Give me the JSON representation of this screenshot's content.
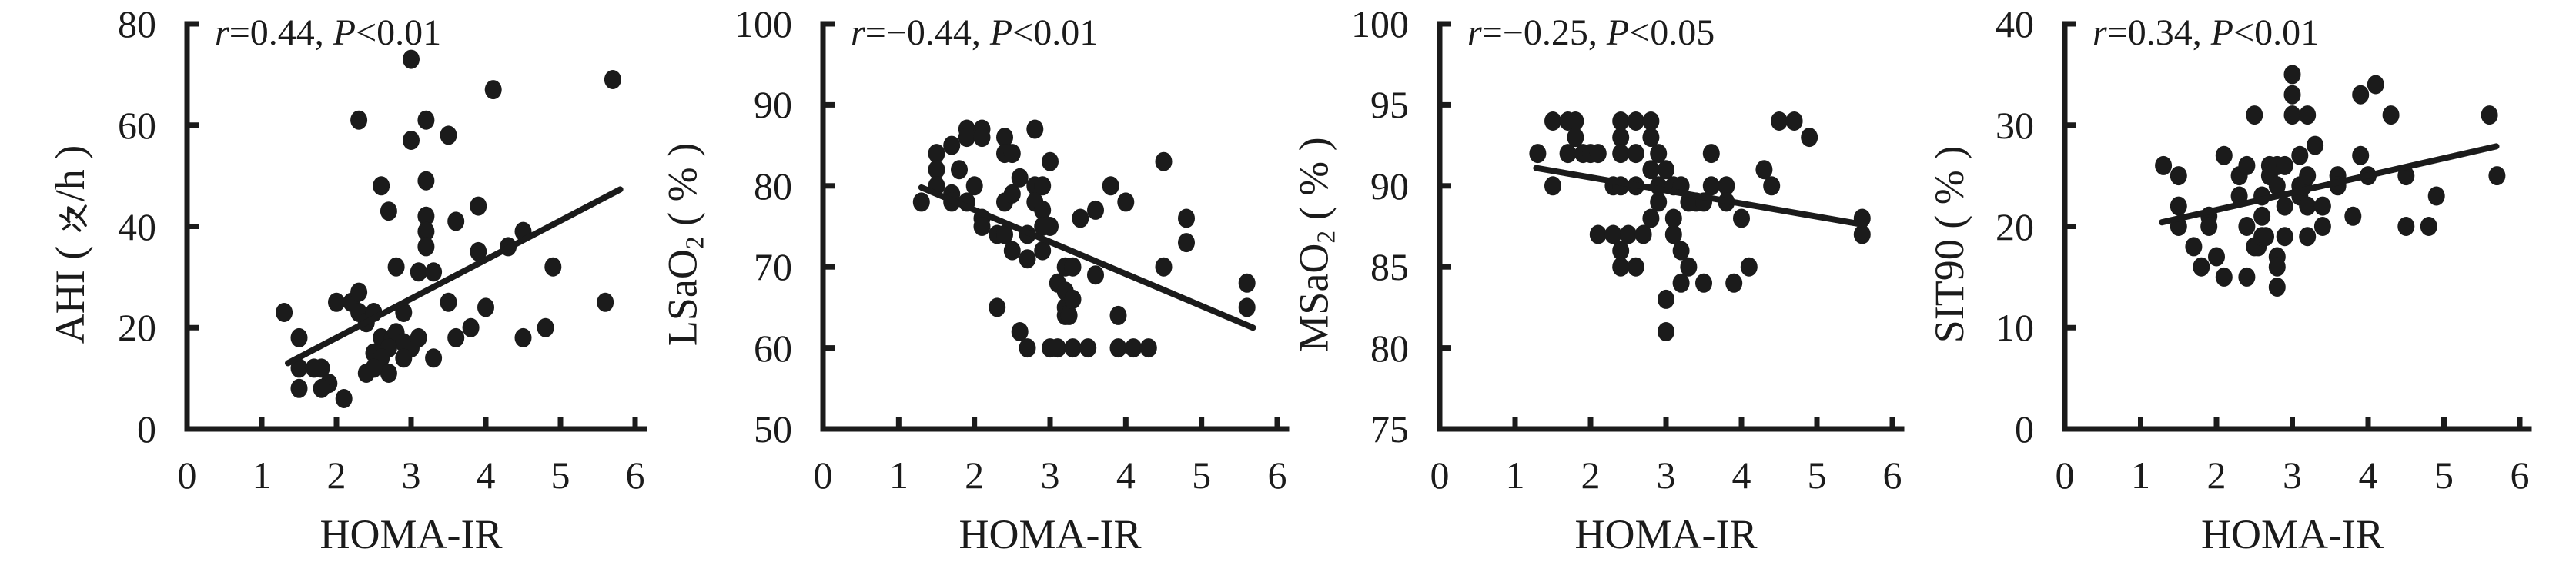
{
  "figure": {
    "background": "#ffffff",
    "ink_color": "#1b1b1b",
    "description": "Four scatter panels with regression lines, correlations of sleep-apnea indices with HOMA-IR"
  },
  "chart_data": [
    {
      "type": "scatter",
      "title": "",
      "annotation": {
        "full": "r=0.44, P<0.01",
        "r_var": "r",
        "r_text": "=0.44, ",
        "p_var": "P",
        "p_text": "<0.01"
      },
      "xlabel": "HOMA-IR",
      "ylabel": "AHI (次/h)",
      "ylabel_parts": [
        {
          "t": "AHI ( "
        },
        {
          "icon": "ci-character"
        },
        {
          "t": "/h )"
        }
      ],
      "xlim": [
        0,
        6
      ],
      "ylim": [
        0,
        80
      ],
      "xticks": [
        "0",
        "1",
        "2",
        "3",
        "4",
        "5",
        "6"
      ],
      "yticks": [
        "0",
        "20",
        "40",
        "60",
        "80"
      ],
      "grid": false,
      "legend": null,
      "regression_line": {
        "x1": 1.35,
        "y1": 13.0,
        "x2": 5.8,
        "y2": 47.3
      },
      "points": [
        [
          3.0,
          73
        ],
        [
          5.7,
          69
        ],
        [
          4.1,
          67
        ],
        [
          2.3,
          61
        ],
        [
          3.2,
          61
        ],
        [
          3.0,
          57
        ],
        [
          3.5,
          58
        ],
        [
          2.6,
          48
        ],
        [
          3.2,
          49
        ],
        [
          2.7,
          43
        ],
        [
          3.9,
          44
        ],
        [
          3.2,
          42
        ],
        [
          3.6,
          41
        ],
        [
          3.2,
          39
        ],
        [
          3.2,
          36
        ],
        [
          3.9,
          35
        ],
        [
          4.3,
          36
        ],
        [
          4.5,
          39
        ],
        [
          2.8,
          32
        ],
        [
          3.1,
          31
        ],
        [
          3.3,
          31
        ],
        [
          4.9,
          32
        ],
        [
          1.3,
          23
        ],
        [
          2.0,
          25
        ],
        [
          2.2,
          25
        ],
        [
          2.3,
          27
        ],
        [
          2.3,
          23
        ],
        [
          2.4,
          21
        ],
        [
          2.5,
          23
        ],
        [
          2.9,
          23
        ],
        [
          3.5,
          25
        ],
        [
          4.0,
          24
        ],
        [
          5.6,
          25
        ],
        [
          3.8,
          20
        ],
        [
          4.8,
          20
        ],
        [
          1.5,
          18
        ],
        [
          2.6,
          18
        ],
        [
          2.75,
          18
        ],
        [
          2.8,
          19
        ],
        [
          2.9,
          17
        ],
        [
          3.0,
          16
        ],
        [
          3.1,
          18
        ],
        [
          2.5,
          15
        ],
        [
          2.7,
          16
        ],
        [
          2.6,
          14
        ],
        [
          2.9,
          14
        ],
        [
          3.6,
          18
        ],
        [
          3.3,
          14
        ],
        [
          4.5,
          18
        ],
        [
          1.5,
          12
        ],
        [
          1.7,
          12
        ],
        [
          1.8,
          12
        ],
        [
          2.4,
          11
        ],
        [
          2.7,
          11
        ],
        [
          2.5,
          12
        ],
        [
          1.9,
          9
        ],
        [
          1.8,
          8
        ],
        [
          1.5,
          8
        ],
        [
          2.1,
          6
        ]
      ]
    },
    {
      "type": "scatter",
      "title": "",
      "annotation": {
        "full": "r=−0.44, P<0.01",
        "r_var": "r",
        "r_text": "=−0.44, ",
        "p_var": "P",
        "p_text": "<0.01"
      },
      "xlabel": "HOMA-IR",
      "ylabel": "LSaO2 ( % )",
      "ylabel_parts": [
        {
          "t": "LSaO"
        },
        {
          "t": "2",
          "sub": true
        },
        {
          "t": " ( % )"
        }
      ],
      "xlim": [
        0,
        6
      ],
      "ylim": [
        50,
        100
      ],
      "xticks": [
        "0",
        "1",
        "2",
        "3",
        "4",
        "5",
        "6"
      ],
      "yticks": [
        "50",
        "60",
        "70",
        "80",
        "90",
        "100"
      ],
      "grid": false,
      "legend": null,
      "regression_line": {
        "x1": 1.3,
        "y1": 79.8,
        "x2": 5.68,
        "y2": 62.5
      },
      "points": [
        [
          1.3,
          78
        ],
        [
          1.5,
          84
        ],
        [
          1.5,
          82
        ],
        [
          1.5,
          80
        ],
        [
          1.7,
          85
        ],
        [
          1.7,
          79
        ],
        [
          1.7,
          78
        ],
        [
          1.8,
          82
        ],
        [
          1.9,
          87
        ],
        [
          1.9,
          86
        ],
        [
          1.9,
          78
        ],
        [
          2.0,
          80
        ],
        [
          2.1,
          87
        ],
        [
          2.1,
          86
        ],
        [
          2.1,
          76
        ],
        [
          2.1,
          75
        ],
        [
          2.3,
          74
        ],
        [
          2.3,
          65
        ],
        [
          2.4,
          86
        ],
        [
          2.4,
          84
        ],
        [
          2.4,
          78
        ],
        [
          2.4,
          74
        ],
        [
          2.5,
          72
        ],
        [
          2.5,
          79
        ],
        [
          2.5,
          84
        ],
        [
          2.6,
          81
        ],
        [
          2.6,
          62
        ],
        [
          2.7,
          74
        ],
        [
          2.7,
          71
        ],
        [
          2.7,
          60
        ],
        [
          2.8,
          87
        ],
        [
          2.8,
          80
        ],
        [
          2.8,
          78
        ],
        [
          2.9,
          80
        ],
        [
          2.9,
          77
        ],
        [
          2.9,
          72
        ],
        [
          2.9,
          75
        ],
        [
          3.0,
          60
        ],
        [
          3.0,
          75
        ],
        [
          3.0,
          83
        ],
        [
          3.1,
          68
        ],
        [
          3.1,
          60
        ],
        [
          3.2,
          65
        ],
        [
          3.2,
          67
        ],
        [
          3.2,
          64
        ],
        [
          3.2,
          70
        ],
        [
          3.25,
          64
        ],
        [
          3.3,
          66
        ],
        [
          3.3,
          60
        ],
        [
          3.3,
          70
        ],
        [
          3.4,
          76
        ],
        [
          3.5,
          60
        ],
        [
          3.6,
          77
        ],
        [
          3.6,
          69
        ],
        [
          3.8,
          80
        ],
        [
          3.9,
          64
        ],
        [
          3.9,
          60
        ],
        [
          4.0,
          78
        ],
        [
          4.1,
          60
        ],
        [
          4.3,
          60
        ],
        [
          4.5,
          83
        ],
        [
          4.5,
          70
        ],
        [
          4.8,
          73
        ],
        [
          4.8,
          76
        ],
        [
          5.6,
          68
        ],
        [
          5.6,
          65
        ]
      ]
    },
    {
      "type": "scatter",
      "title": "",
      "annotation": {
        "full": "r=−0.25, P<0.05",
        "r_var": "r",
        "r_text": "=−0.25, ",
        "p_var": "P",
        "p_text": "<0.05"
      },
      "xlabel": "HOMA-IR",
      "ylabel": "MSaO2 ( % )",
      "ylabel_parts": [
        {
          "t": "MSaO"
        },
        {
          "t": "2",
          "sub": true
        },
        {
          "t": " ( % )"
        }
      ],
      "xlim": [
        0,
        6
      ],
      "ylim": [
        75,
        100
      ],
      "xticks": [
        "0",
        "1",
        "2",
        "3",
        "4",
        "5",
        "6"
      ],
      "yticks": [
        "75",
        "80",
        "85",
        "90",
        "95",
        "100"
      ],
      "grid": false,
      "legend": null,
      "regression_line": {
        "x1": 1.28,
        "y1": 91.1,
        "x2": 5.63,
        "y2": 87.6
      },
      "points": [
        [
          1.3,
          92
        ],
        [
          1.5,
          94
        ],
        [
          1.5,
          90
        ],
        [
          1.7,
          94
        ],
        [
          1.7,
          92
        ],
        [
          1.8,
          94
        ],
        [
          1.8,
          93
        ],
        [
          1.9,
          92
        ],
        [
          2.0,
          92
        ],
        [
          2.1,
          92
        ],
        [
          2.1,
          87
        ],
        [
          2.3,
          90
        ],
        [
          2.3,
          87
        ],
        [
          2.4,
          94
        ],
        [
          2.4,
          93
        ],
        [
          2.4,
          92
        ],
        [
          2.4,
          90
        ],
        [
          2.4,
          86
        ],
        [
          2.4,
          85
        ],
        [
          2.5,
          87
        ],
        [
          2.6,
          90
        ],
        [
          2.6,
          94
        ],
        [
          2.6,
          92
        ],
        [
          2.6,
          85
        ],
        [
          2.7,
          87
        ],
        [
          2.8,
          94
        ],
        [
          2.8,
          93
        ],
        [
          2.8,
          91
        ],
        [
          2.8,
          88
        ],
        [
          2.9,
          89
        ],
        [
          2.9,
          92
        ],
        [
          2.9,
          90
        ],
        [
          3.0,
          83
        ],
        [
          3.0,
          81
        ],
        [
          3.0,
          91
        ],
        [
          3.1,
          90
        ],
        [
          3.1,
          87
        ],
        [
          3.1,
          88
        ],
        [
          3.2,
          86
        ],
        [
          3.2,
          84
        ],
        [
          3.2,
          90
        ],
        [
          3.3,
          89
        ],
        [
          3.3,
          85
        ],
        [
          3.4,
          89
        ],
        [
          3.5,
          84
        ],
        [
          3.5,
          89
        ],
        [
          3.6,
          90
        ],
        [
          3.6,
          92
        ],
        [
          3.8,
          90
        ],
        [
          3.8,
          89
        ],
        [
          3.9,
          84
        ],
        [
          4.0,
          88
        ],
        [
          4.1,
          85
        ],
        [
          4.3,
          91
        ],
        [
          4.4,
          90
        ],
        [
          4.5,
          94
        ],
        [
          4.7,
          94
        ],
        [
          4.9,
          93
        ],
        [
          5.6,
          87
        ],
        [
          5.6,
          88
        ]
      ]
    },
    {
      "type": "scatter",
      "title": "",
      "annotation": {
        "full": "r=0.34, P<0.01",
        "r_var": "r",
        "r_text": "=0.34, ",
        "p_var": "P",
        "p_text": "<0.01"
      },
      "xlabel": "HOMA-IR",
      "ylabel": "SIT90 ( % )",
      "ylabel_parts": [
        {
          "t": "SIT90 ( % )"
        }
      ],
      "xlim": [
        0,
        6
      ],
      "ylim": [
        0,
        40
      ],
      "xticks": [
        "0",
        "1",
        "2",
        "3",
        "4",
        "5",
        "6"
      ],
      "yticks": [
        "0",
        "10",
        "20",
        "30",
        "40"
      ],
      "grid": false,
      "legend": null,
      "regression_line": {
        "x1": 1.28,
        "y1": 20.4,
        "x2": 5.69,
        "y2": 27.9
      },
      "points": [
        [
          1.3,
          26
        ],
        [
          1.5,
          25
        ],
        [
          1.5,
          22
        ],
        [
          1.5,
          20
        ],
        [
          1.7,
          18
        ],
        [
          1.8,
          16
        ],
        [
          1.9,
          21
        ],
        [
          1.9,
          20
        ],
        [
          2.0,
          17
        ],
        [
          2.1,
          15
        ],
        [
          2.1,
          27
        ],
        [
          2.3,
          23
        ],
        [
          2.3,
          25
        ],
        [
          2.4,
          26
        ],
        [
          2.4,
          20
        ],
        [
          2.4,
          15
        ],
        [
          2.5,
          18
        ],
        [
          2.55,
          18
        ],
        [
          2.5,
          31
        ],
        [
          2.6,
          23
        ],
        [
          2.6,
          19
        ],
        [
          2.6,
          21
        ],
        [
          2.65,
          19
        ],
        [
          2.7,
          26
        ],
        [
          2.7,
          25
        ],
        [
          2.8,
          24
        ],
        [
          2.8,
          17
        ],
        [
          2.8,
          16
        ],
        [
          2.8,
          14
        ],
        [
          2.8,
          26
        ],
        [
          2.9,
          26
        ],
        [
          2.9,
          22
        ],
        [
          2.9,
          19
        ],
        [
          3.0,
          35
        ],
        [
          3.0,
          33
        ],
        [
          3.0,
          31
        ],
        [
          3.1,
          27
        ],
        [
          3.1,
          24
        ],
        [
          3.1,
          23
        ],
        [
          3.15,
          24
        ],
        [
          3.2,
          19
        ],
        [
          3.2,
          31
        ],
        [
          3.2,
          25
        ],
        [
          3.2,
          22
        ],
        [
          3.3,
          28
        ],
        [
          3.4,
          22
        ],
        [
          3.4,
          20
        ],
        [
          3.6,
          25
        ],
        [
          3.6,
          24
        ],
        [
          3.8,
          21
        ],
        [
          3.9,
          27
        ],
        [
          3.9,
          33
        ],
        [
          4.0,
          25
        ],
        [
          4.1,
          34
        ],
        [
          4.3,
          31
        ],
        [
          4.5,
          25
        ],
        [
          4.5,
          20
        ],
        [
          4.8,
          20
        ],
        [
          4.9,
          23
        ],
        [
          5.6,
          31
        ],
        [
          5.7,
          25
        ]
      ]
    }
  ]
}
